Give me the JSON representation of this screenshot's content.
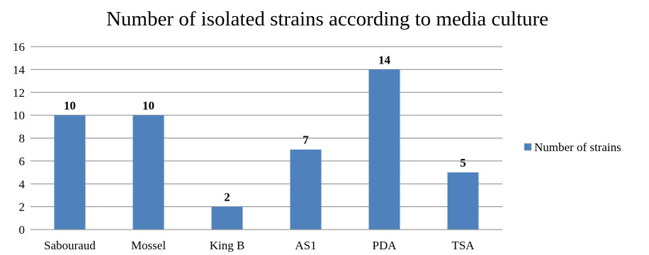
{
  "chart_data": {
    "type": "bar",
    "title": "Number of isolated strains according to media culture",
    "categories": [
      "Sabouraud",
      "Mossel",
      "King B",
      "AS1",
      "PDA",
      "TSA"
    ],
    "series": [
      {
        "name": "Number of strains",
        "values": [
          10,
          10,
          2,
          7,
          14,
          5
        ],
        "color": "#4f81bd"
      }
    ],
    "ylim": [
      0,
      16
    ],
    "yticks": [
      0,
      2,
      4,
      6,
      8,
      10,
      12,
      14,
      16
    ],
    "grid": true,
    "data_labels": true,
    "legend_position": "right",
    "xlabel": "",
    "ylabel": ""
  }
}
